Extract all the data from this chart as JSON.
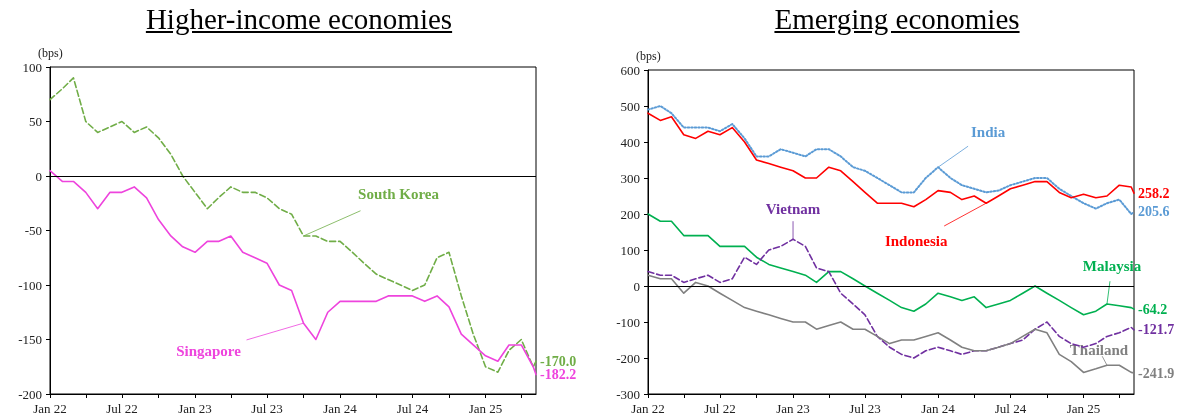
{
  "chart_data": [
    {
      "type": "line",
      "title": "Higher-income economies",
      "ylabel": "(bps)",
      "x": [
        "2022-01-01",
        "2022-02-01",
        "2022-03-01",
        "2022-04-01",
        "2022-05-01",
        "2022-06-01",
        "2022-07-01",
        "2022-08-01",
        "2022-09-01",
        "2022-10-01",
        "2022-11-01",
        "2022-12-01",
        "2023-01-01",
        "2023-02-01",
        "2023-03-01",
        "2023-04-01",
        "2023-05-01",
        "2023-06-01",
        "2023-07-01",
        "2023-08-01",
        "2023-09-01",
        "2023-10-01",
        "2023-11-01",
        "2023-12-01",
        "2024-01-01",
        "2024-02-01",
        "2024-03-01",
        "2024-04-01",
        "2024-05-01",
        "2024-06-01",
        "2024-07-01",
        "2024-08-01",
        "2024-09-01",
        "2024-10-01",
        "2024-11-01",
        "2024-12-01",
        "2025-01-01",
        "2025-02-01",
        "2025-03-01",
        "2025-04-01",
        "2025-05-01",
        "2025-05-08"
      ],
      "series": [
        {
          "name": "South Korea",
          "color": "#70ad47",
          "line_style": "dashed",
          "values": [
            70,
            80,
            90,
            50,
            40,
            45,
            50,
            40,
            45,
            35,
            20,
            0,
            -15,
            -30,
            -20,
            -10,
            -15,
            -15,
            -20,
            -30,
            -35,
            -55,
            -55,
            -60,
            -60,
            -70,
            -80,
            -90,
            -95,
            -100,
            -105,
            -100,
            -75,
            -70,
            -110,
            -145,
            -175,
            -180,
            -160,
            -150,
            -175,
            -170.0
          ],
          "value_labels": [
            null,
            null,
            null,
            null,
            null,
            null,
            null,
            null,
            null,
            null,
            null,
            null,
            null,
            null,
            null,
            null,
            null,
            null,
            null,
            null,
            null,
            null,
            null,
            null,
            null,
            null,
            null,
            null,
            null,
            null,
            null,
            null,
            null,
            null,
            null,
            null,
            null,
            null,
            null,
            null,
            null,
            "-170.0"
          ]
        },
        {
          "name": "Singapore",
          "color": "#ee44dd",
          "line_style": "solid",
          "values": [
            5,
            -5,
            -5,
            -15,
            -30,
            -15,
            -15,
            -10,
            -20,
            -40,
            -55,
            -65,
            -70,
            -60,
            -60,
            -55,
            -70,
            -75,
            -80,
            -100,
            -105,
            -135,
            -150,
            -125,
            -115,
            -115,
            -115,
            -115,
            -110,
            -110,
            -110,
            -115,
            -110,
            -120,
            -145,
            -155,
            -165,
            -170,
            -155,
            -155,
            -175,
            -182.2
          ],
          "value_labels": [
            null,
            null,
            null,
            null,
            null,
            null,
            null,
            null,
            null,
            null,
            null,
            null,
            null,
            null,
            null,
            null,
            null,
            null,
            null,
            null,
            null,
            null,
            null,
            null,
            null,
            null,
            null,
            null,
            null,
            null,
            null,
            null,
            null,
            null,
            null,
            null,
            null,
            null,
            null,
            null,
            null,
            "-182.2"
          ]
        }
      ],
      "xlim": [
        "2022-01-01",
        "2025-05-08"
      ],
      "xticks": [
        {
          "value": "2022-01-01",
          "label": "Jan 22"
        },
        {
          "value": "2022-04-01",
          "label": null
        },
        {
          "value": "2022-07-01",
          "label": "Jul 22"
        },
        {
          "value": "2022-10-01",
          "label": null
        },
        {
          "value": "2023-01-01",
          "label": "Jan 23"
        },
        {
          "value": "2023-04-01",
          "label": null
        },
        {
          "value": "2023-07-01",
          "label": "Jul 23"
        },
        {
          "value": "2023-10-01",
          "label": null
        },
        {
          "value": "2024-01-01",
          "label": "Jan 24"
        },
        {
          "value": "2024-04-01",
          "label": null
        },
        {
          "value": "2024-07-01",
          "label": "Jul 24"
        },
        {
          "value": "2024-10-01",
          "label": null
        },
        {
          "value": "2025-01-01",
          "label": "Jan 25"
        },
        {
          "value": "2025-04-01",
          "label": null
        }
      ],
      "ylim": [
        -200,
        100
      ],
      "yticks": [
        -200,
        -150,
        -100,
        -50,
        0,
        50,
        100
      ],
      "ref_lines": [
        {
          "axis": "y",
          "value": 0,
          "color": "#000000"
        }
      ],
      "grid": false,
      "legend": false
    },
    {
      "type": "line",
      "title": "Emerging economies",
      "ylabel": "(bps)",
      "x": [
        "2022-01-01",
        "2022-02-01",
        "2022-03-01",
        "2022-04-01",
        "2022-05-01",
        "2022-06-01",
        "2022-07-01",
        "2022-08-01",
        "2022-09-01",
        "2022-10-01",
        "2022-11-01",
        "2022-12-01",
        "2023-01-01",
        "2023-02-01",
        "2023-03-01",
        "2023-04-01",
        "2023-05-01",
        "2023-06-01",
        "2023-07-01",
        "2023-08-01",
        "2023-09-01",
        "2023-10-01",
        "2023-11-01",
        "2023-12-01",
        "2024-01-01",
        "2024-02-01",
        "2024-03-01",
        "2024-04-01",
        "2024-05-01",
        "2024-06-01",
        "2024-07-01",
        "2024-08-01",
        "2024-09-01",
        "2024-10-01",
        "2024-11-01",
        "2024-12-01",
        "2025-01-01",
        "2025-02-01",
        "2025-03-01",
        "2025-04-01",
        "2025-05-01",
        "2025-05-08"
      ],
      "series": [
        {
          "name": "India",
          "color": "#5b9bd5",
          "line_style": "dotted",
          "values": [
            490,
            500,
            480,
            440,
            440,
            440,
            430,
            450,
            410,
            360,
            360,
            380,
            370,
            360,
            380,
            380,
            360,
            330,
            320,
            300,
            280,
            260,
            260,
            300,
            330,
            300,
            280,
            270,
            260,
            265,
            280,
            290,
            300,
            300,
            270,
            250,
            230,
            215,
            230,
            240,
            200,
            205.6
          ],
          "value_labels": [
            null,
            null,
            null,
            null,
            null,
            null,
            null,
            null,
            null,
            null,
            null,
            null,
            null,
            null,
            null,
            null,
            null,
            null,
            null,
            null,
            null,
            null,
            null,
            null,
            null,
            null,
            null,
            null,
            null,
            null,
            null,
            null,
            null,
            null,
            null,
            null,
            null,
            null,
            null,
            null,
            null,
            "205.6"
          ]
        },
        {
          "name": "Indonesia",
          "color": "#ff0000",
          "line_style": "solid",
          "values": [
            480,
            460,
            470,
            420,
            410,
            430,
            420,
            440,
            400,
            350,
            340,
            330,
            320,
            300,
            300,
            330,
            320,
            290,
            260,
            230,
            230,
            230,
            220,
            240,
            265,
            260,
            240,
            250,
            230,
            250,
            270,
            280,
            290,
            290,
            260,
            245,
            255,
            245,
            250,
            280,
            275,
            258.2
          ],
          "value_labels": [
            null,
            null,
            null,
            null,
            null,
            null,
            null,
            null,
            null,
            null,
            null,
            null,
            null,
            null,
            null,
            null,
            null,
            null,
            null,
            null,
            null,
            null,
            null,
            null,
            null,
            null,
            null,
            null,
            null,
            null,
            null,
            null,
            null,
            null,
            null,
            null,
            null,
            null,
            null,
            null,
            null,
            "258.2"
          ]
        },
        {
          "name": "Malaysia",
          "color": "#00b050",
          "line_style": "solid",
          "values": [
            200,
            180,
            180,
            140,
            140,
            140,
            110,
            110,
            110,
            80,
            60,
            50,
            40,
            30,
            10,
            40,
            40,
            20,
            0,
            -20,
            -40,
            -60,
            -70,
            -50,
            -20,
            -30,
            -40,
            -30,
            -60,
            -50,
            -40,
            -20,
            0,
            -20,
            -40,
            -60,
            -80,
            -70,
            -50,
            -55,
            -60,
            -64.2
          ],
          "value_labels": [
            null,
            null,
            null,
            null,
            null,
            null,
            null,
            null,
            null,
            null,
            null,
            null,
            null,
            null,
            null,
            null,
            null,
            null,
            null,
            null,
            null,
            null,
            null,
            null,
            null,
            null,
            null,
            null,
            null,
            null,
            null,
            null,
            null,
            null,
            null,
            null,
            null,
            null,
            null,
            null,
            null,
            "-64.2"
          ]
        },
        {
          "name": "Vietnam",
          "color": "#7030a0",
          "line_style": "dashed",
          "values": [
            40,
            30,
            30,
            10,
            20,
            30,
            10,
            20,
            80,
            60,
            100,
            110,
            130,
            110,
            50,
            40,
            -20,
            -50,
            -80,
            -140,
            -170,
            -190,
            -200,
            -180,
            -170,
            -180,
            -190,
            -180,
            -180,
            -170,
            -160,
            -150,
            -120,
            -100,
            -140,
            -160,
            -170,
            -160,
            -140,
            -130,
            -115,
            -121.7
          ],
          "value_labels": [
            null,
            null,
            null,
            null,
            null,
            null,
            null,
            null,
            null,
            null,
            null,
            null,
            null,
            null,
            null,
            null,
            null,
            null,
            null,
            null,
            null,
            null,
            null,
            null,
            null,
            null,
            null,
            null,
            null,
            null,
            null,
            null,
            null,
            null,
            null,
            null,
            null,
            null,
            null,
            null,
            null,
            "-121.7"
          ]
        },
        {
          "name": "Thailand",
          "color": "#808080",
          "line_style": "solid",
          "values": [
            30,
            20,
            20,
            -20,
            10,
            0,
            -20,
            -40,
            -60,
            -70,
            -80,
            -90,
            -100,
            -100,
            -120,
            -110,
            -100,
            -120,
            -120,
            -140,
            -160,
            -150,
            -150,
            -140,
            -130,
            -150,
            -170,
            -180,
            -180,
            -170,
            -160,
            -140,
            -120,
            -130,
            -190,
            -210,
            -240,
            -230,
            -220,
            -220,
            -240,
            -241.9
          ],
          "value_labels": [
            null,
            null,
            null,
            null,
            null,
            null,
            null,
            null,
            null,
            null,
            null,
            null,
            null,
            null,
            null,
            null,
            null,
            null,
            null,
            null,
            null,
            null,
            null,
            null,
            null,
            null,
            null,
            null,
            null,
            null,
            null,
            null,
            null,
            null,
            null,
            null,
            null,
            null,
            null,
            null,
            null,
            "-241.9"
          ]
        }
      ],
      "xlim": [
        "2022-01-01",
        "2025-05-08"
      ],
      "xticks": [
        {
          "value": "2022-01-01",
          "label": "Jan 22"
        },
        {
          "value": "2022-04-01",
          "label": null
        },
        {
          "value": "2022-07-01",
          "label": "Jul 22"
        },
        {
          "value": "2022-10-01",
          "label": null
        },
        {
          "value": "2023-01-01",
          "label": "Jan 23"
        },
        {
          "value": "2023-04-01",
          "label": null
        },
        {
          "value": "2023-07-01",
          "label": "Jul 23"
        },
        {
          "value": "2023-10-01",
          "label": null
        },
        {
          "value": "2024-01-01",
          "label": "Jan 24"
        },
        {
          "value": "2024-04-01",
          "label": null
        },
        {
          "value": "2024-07-01",
          "label": "Jul 24"
        },
        {
          "value": "2024-10-01",
          "label": null
        },
        {
          "value": "2025-01-01",
          "label": "Jan 25"
        },
        {
          "value": "2025-04-01",
          "label": null
        }
      ],
      "ylim": [
        -300,
        600
      ],
      "yticks": [
        -300,
        -200,
        -100,
        0,
        100,
        200,
        300,
        400,
        500,
        600
      ],
      "ref_lines": [
        {
          "axis": "y",
          "value": 0,
          "color": "#000000"
        }
      ],
      "grid": false,
      "legend": false
    }
  ]
}
